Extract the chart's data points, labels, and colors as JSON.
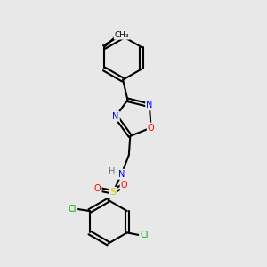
{
  "background_color": "#e8e8e8",
  "bond_color": "#000000",
  "atom_colors": {
    "N": "#0000ff",
    "O": "#ff0000",
    "S": "#cccc00",
    "Cl": "#00aa00",
    "C": "#000000",
    "H": "#777777"
  }
}
